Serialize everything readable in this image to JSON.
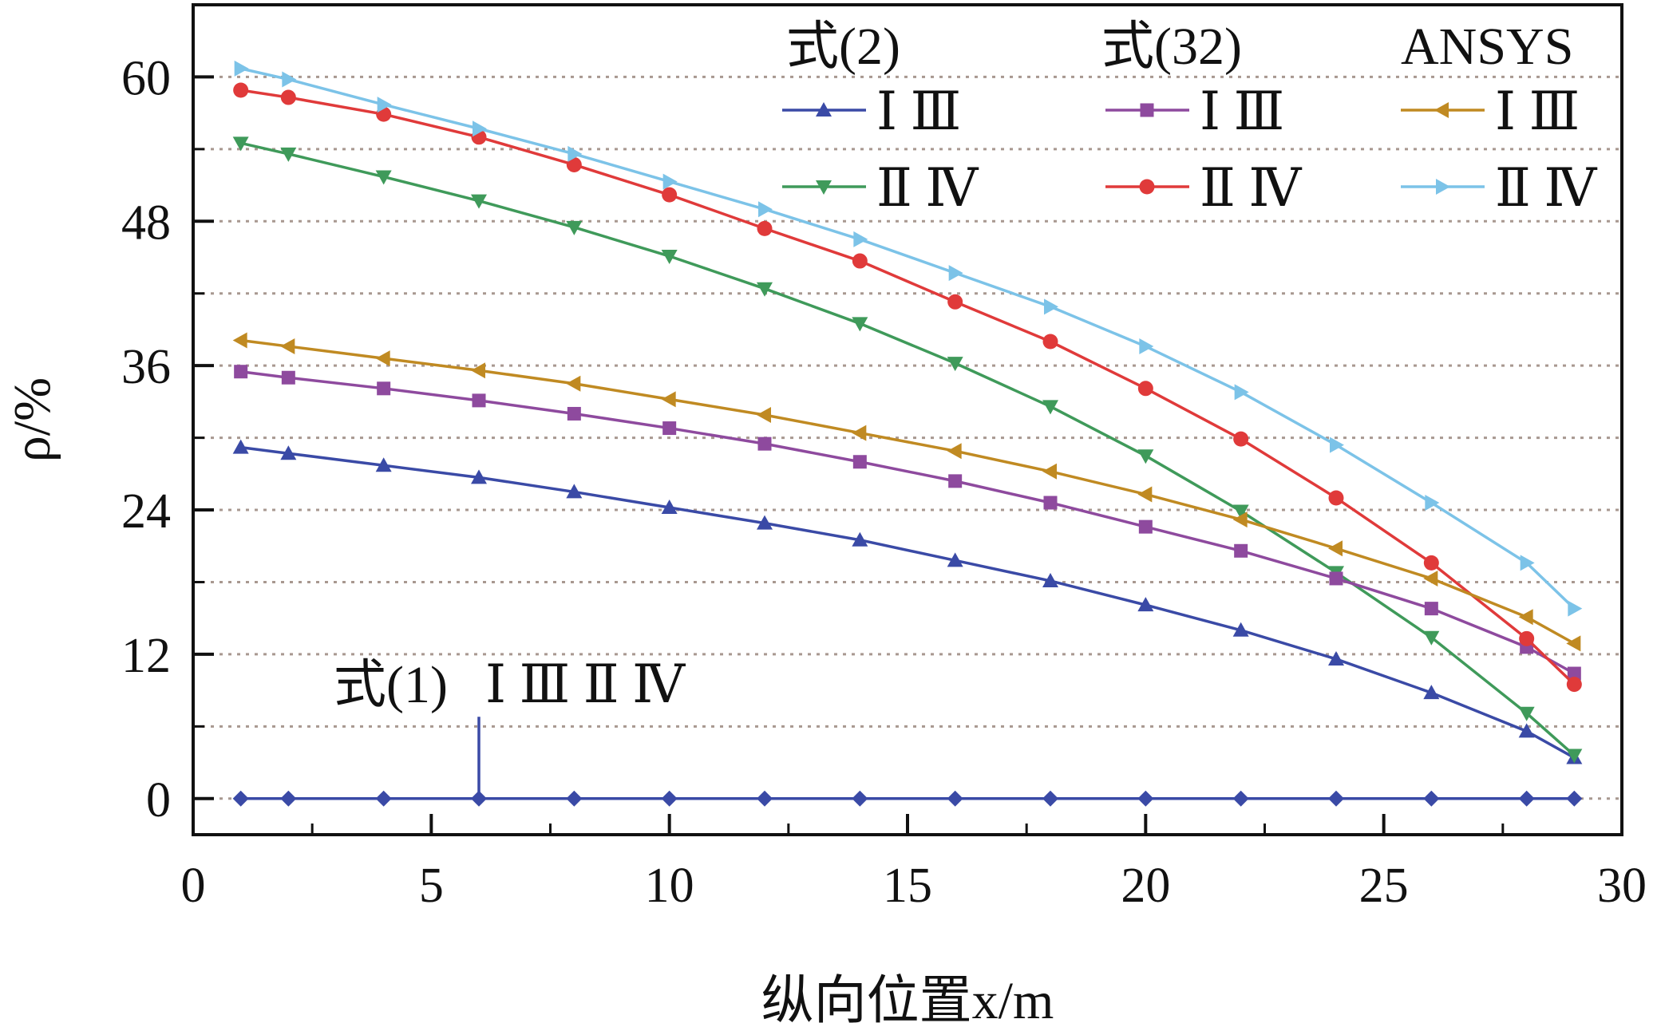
{
  "chart_data": {
    "type": "line",
    "xlabel": "纵向位置x/m",
    "ylabel": "ρ/%",
    "xlim": [
      0,
      30
    ],
    "ylim": [
      -3,
      66
    ],
    "xticks": [
      0,
      5,
      10,
      15,
      20,
      25,
      30
    ],
    "yticks": [
      0,
      12,
      24,
      36,
      48,
      60
    ],
    "grid": "horizontal dotted",
    "legend_groups": [
      {
        "title": "式(2)",
        "col": 0
      },
      {
        "title": "式(32)",
        "col": 1
      },
      {
        "title": "ANSYS",
        "col": 2
      }
    ],
    "series": [
      {
        "name": "Ⅰ Ⅲ",
        "group": "式(2)",
        "color": "#3a4aa6",
        "marker": "triangle-up",
        "x": [
          1,
          2,
          4,
          6,
          8,
          10,
          12,
          14,
          16,
          18,
          20,
          22,
          24,
          26,
          28,
          29
        ],
        "y": [
          29.2,
          28.7,
          27.7,
          26.7,
          25.5,
          24.2,
          22.9,
          21.5,
          19.8,
          18.1,
          16.1,
          14.0,
          11.6,
          8.8,
          5.6,
          3.4
        ]
      },
      {
        "name": "Ⅱ Ⅳ",
        "group": "式(2)",
        "color": "#3f9a5a",
        "marker": "triangle-down",
        "x": [
          1,
          2,
          4,
          6,
          8,
          10,
          12,
          14,
          16,
          18,
          20,
          22,
          24,
          26,
          28,
          29
        ],
        "y": [
          54.5,
          53.6,
          51.7,
          49.7,
          47.5,
          45.1,
          42.4,
          39.5,
          36.2,
          32.6,
          28.5,
          23.9,
          18.8,
          13.4,
          7.1,
          3.6
        ]
      },
      {
        "name": "Ⅰ Ⅲ",
        "group": "式(32)",
        "color": "#8e4a9e",
        "marker": "square",
        "x": [
          1,
          2,
          4,
          6,
          8,
          10,
          12,
          14,
          16,
          18,
          20,
          22,
          24,
          26,
          28,
          29
        ],
        "y": [
          35.5,
          35.0,
          34.1,
          33.1,
          32.0,
          30.8,
          29.5,
          28.0,
          26.4,
          24.6,
          22.6,
          20.6,
          18.3,
          15.8,
          12.6,
          10.4
        ]
      },
      {
        "name": "Ⅱ Ⅳ",
        "group": "式(32)",
        "color": "#e03a3a",
        "marker": "circle",
        "x": [
          1,
          2,
          4,
          6,
          8,
          10,
          12,
          14,
          16,
          18,
          20,
          22,
          24,
          26,
          28,
          29
        ],
        "y": [
          58.9,
          58.3,
          56.9,
          55.0,
          52.7,
          50.2,
          47.4,
          44.7,
          41.3,
          38.0,
          34.1,
          29.9,
          25.0,
          19.6,
          13.3,
          9.5
        ]
      },
      {
        "name": "Ⅰ Ⅲ",
        "group": "ANSYS",
        "color": "#c08a22",
        "marker": "triangle-left",
        "x": [
          1,
          2,
          4,
          6,
          8,
          10,
          12,
          14,
          16,
          18,
          20,
          22,
          24,
          26,
          28,
          29
        ],
        "y": [
          38.1,
          37.6,
          36.6,
          35.6,
          34.5,
          33.2,
          31.9,
          30.4,
          28.9,
          27.2,
          25.3,
          23.2,
          20.8,
          18.3,
          15.1,
          12.9
        ]
      },
      {
        "name": "Ⅱ Ⅳ",
        "group": "ANSYS",
        "color": "#7cc3e8",
        "marker": "triangle-right",
        "x": [
          1,
          2,
          4,
          6,
          8,
          10,
          12,
          14,
          16,
          18,
          20,
          22,
          24,
          26,
          28,
          29
        ],
        "y": [
          60.7,
          59.8,
          57.7,
          55.7,
          53.6,
          51.3,
          49.0,
          46.5,
          43.7,
          40.9,
          37.6,
          33.8,
          29.4,
          24.6,
          19.6,
          15.8
        ]
      },
      {
        "name": "式(1)",
        "group": "annotation",
        "color": "#3a4aa6",
        "marker": "diamond",
        "x": [
          1,
          2,
          4,
          6,
          8,
          10,
          12,
          14,
          16,
          18,
          20,
          22,
          24,
          26,
          28,
          29
        ],
        "y": [
          0,
          0,
          0,
          0,
          0,
          0,
          0,
          0,
          0,
          0,
          0,
          0,
          0,
          0,
          0,
          0
        ]
      }
    ],
    "annotation": {
      "label": "式(1)",
      "series_label": "Ⅰ Ⅲ  Ⅱ Ⅳ",
      "x": 6,
      "y_top": 6.8
    }
  }
}
